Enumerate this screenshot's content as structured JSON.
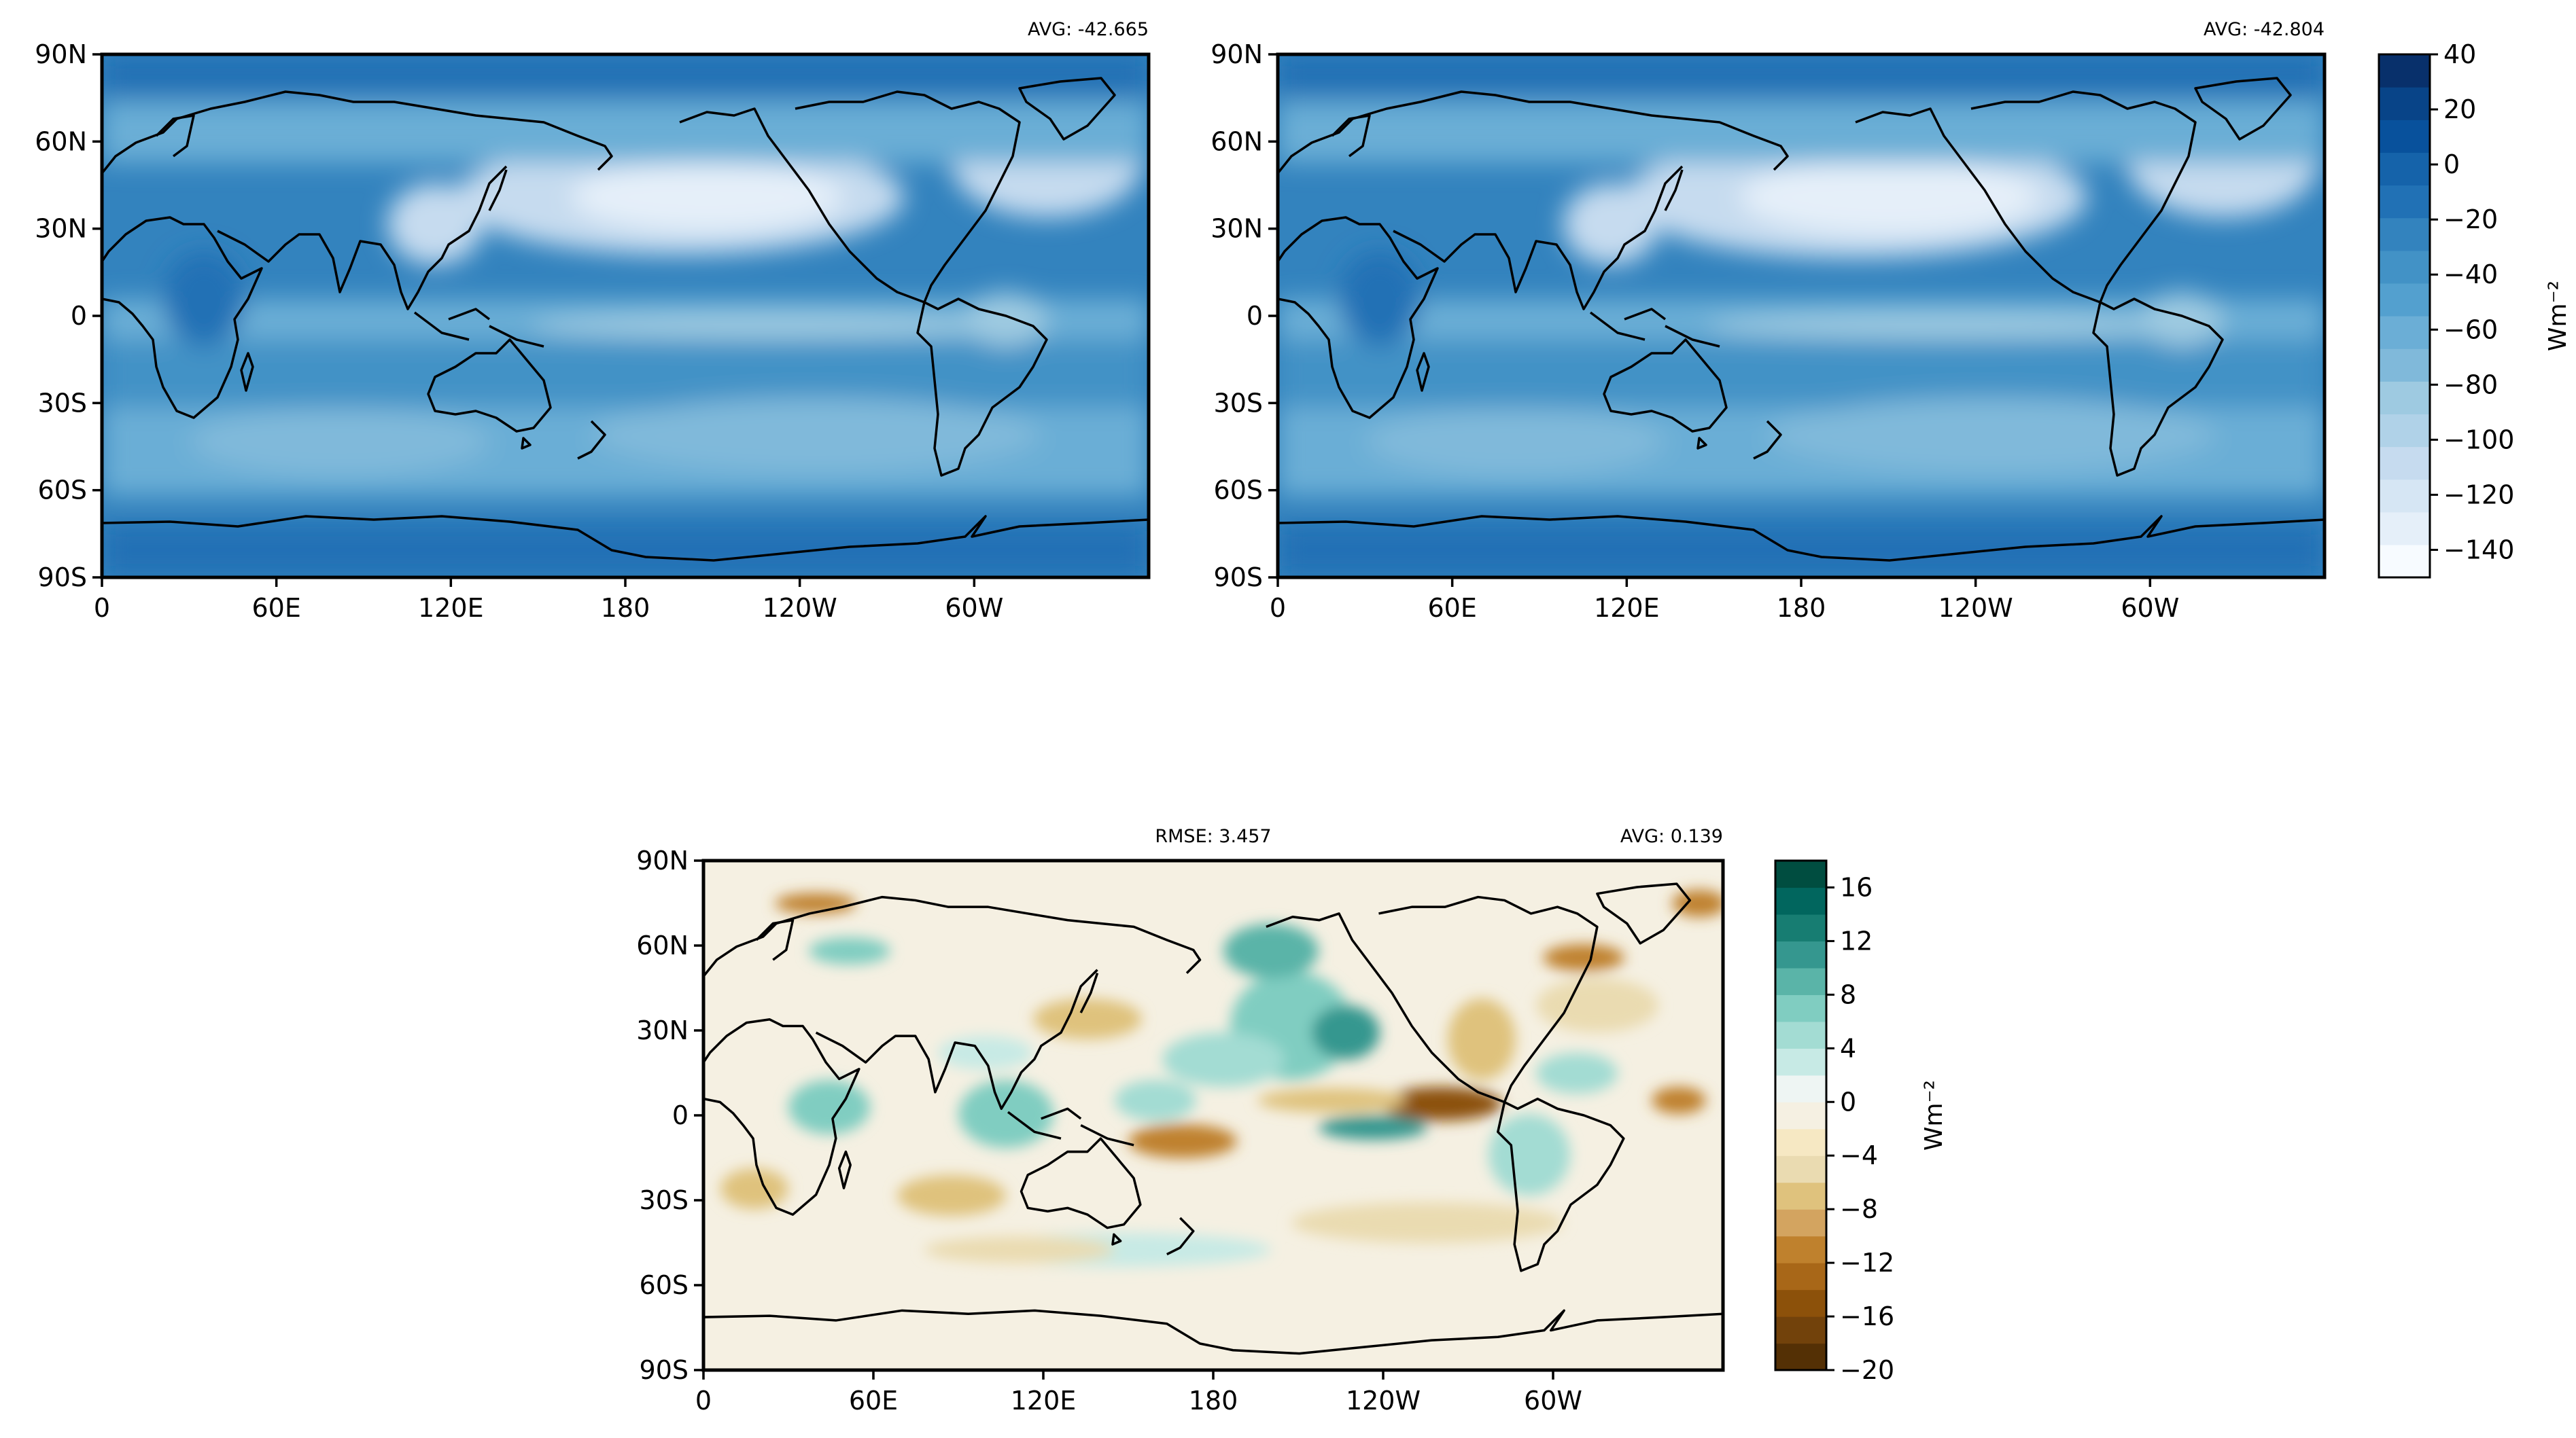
{
  "colors": {
    "blues": [
      "#f7fbff",
      "#e5eff9",
      "#d6e6f4",
      "#c6dbef",
      "#b0d2e8",
      "#9ecae1",
      "#80b9da",
      "#6baed6",
      "#53a0cf",
      "#4292c6",
      "#3383be",
      "#2171b5",
      "#1563aa",
      "#08519c",
      "#084488",
      "#08306b"
    ],
    "brbg": [
      "#543005",
      "#72420b",
      "#8c510a",
      "#a86718",
      "#bf812d",
      "#d3a460",
      "#dfc27d",
      "#eadbb1",
      "#f6e8c3",
      "#f5f0e2",
      "#eef5f3",
      "#c7eae5",
      "#a3dcd3",
      "#80cdc1",
      "#5ab4a8",
      "#35978f",
      "#177d72",
      "#01665e",
      "#004d40"
    ],
    "coast": "#000000"
  },
  "chart_data": [
    {
      "type": "heatmap",
      "name": "upper-left-map",
      "top_right_label": "AVG: -42.665",
      "x_ticks": [
        "0",
        "60E",
        "120E",
        "180",
        "120W",
        "60W"
      ],
      "y_ticks": [
        "90N",
        "60N",
        "30N",
        "0",
        "30S",
        "60S",
        "90S"
      ],
      "x_range": [
        0,
        360
      ],
      "y_range": [
        -90,
        90
      ],
      "colorbar": null
    },
    {
      "type": "heatmap",
      "name": "upper-right-map",
      "top_right_label": "AVG: -42.804",
      "x_ticks": [
        "0",
        "60E",
        "120E",
        "180",
        "120W",
        "60W"
      ],
      "y_ticks": [
        "90N",
        "60N",
        "30N",
        "0",
        "30S",
        "60S",
        "90S"
      ],
      "x_range": [
        0,
        360
      ],
      "y_range": [
        -90,
        90
      ],
      "colorbar": {
        "label": "Wm⁻²",
        "range": [
          -150,
          40
        ],
        "ticks": [
          40,
          20,
          0,
          -20,
          -40,
          -60,
          -80,
          -100,
          -120,
          -140
        ],
        "tick_labels": [
          "40",
          "20",
          "0",
          "−20",
          "−40",
          "−60",
          "−80",
          "−100",
          "−120",
          "−140"
        ]
      }
    },
    {
      "type": "heatmap",
      "name": "difference-map",
      "top_center_label": "RMSE: 3.457",
      "top_right_label": "AVG: 0.139",
      "x_ticks": [
        "0",
        "60E",
        "120E",
        "180",
        "120W",
        "60W"
      ],
      "y_ticks": [
        "90N",
        "60N",
        "30N",
        "0",
        "30S",
        "60S",
        "90S"
      ],
      "x_range": [
        0,
        360
      ],
      "y_range": [
        -90,
        90
      ],
      "colorbar": {
        "label": "Wm⁻²",
        "range": [
          -20,
          18
        ],
        "ticks": [
          16,
          12,
          8,
          4,
          0,
          -4,
          -8,
          -12,
          -16,
          -20
        ],
        "tick_labels": [
          "16",
          "12",
          "8",
          "4",
          "0",
          "−4",
          "−8",
          "−12",
          "−16",
          "−20"
        ]
      }
    }
  ]
}
